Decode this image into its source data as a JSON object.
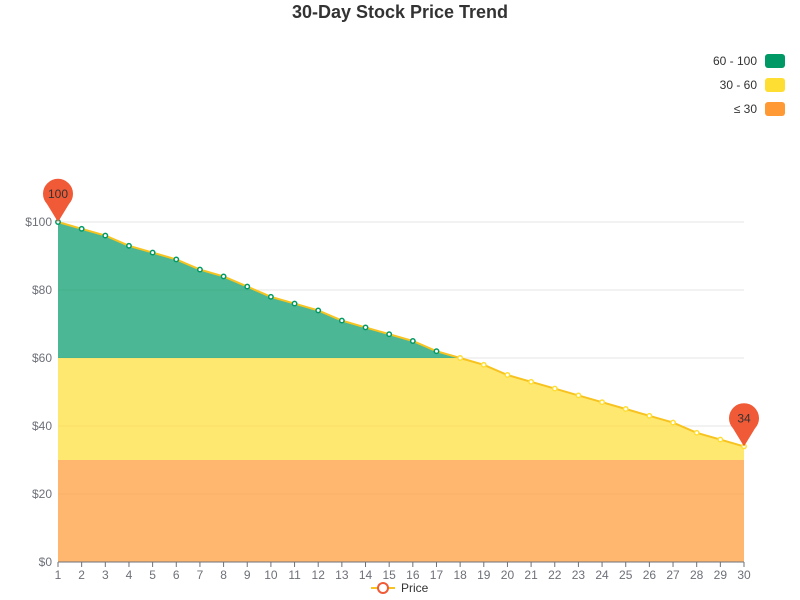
{
  "chart_data": {
    "type": "area",
    "title": "30-Day Stock Price Trend",
    "x": [
      1,
      2,
      3,
      4,
      5,
      6,
      7,
      8,
      9,
      10,
      11,
      12,
      13,
      14,
      15,
      16,
      17,
      18,
      19,
      20,
      21,
      22,
      23,
      24,
      25,
      26,
      27,
      28,
      29,
      30
    ],
    "series": [
      {
        "name": "Price",
        "values": [
          100,
          98,
          96,
          93,
          91,
          89,
          86,
          84,
          81,
          78,
          76,
          74,
          71,
          69,
          67,
          65,
          62,
          60,
          58,
          55,
          53,
          51,
          49,
          47,
          45,
          43,
          41,
          38,
          36,
          34
        ]
      }
    ],
    "ylim": [
      0,
      100
    ],
    "yticks": [
      0,
      20,
      40,
      60,
      80,
      100
    ],
    "ytick_prefix": "$",
    "grid": true,
    "visual_map": [
      {
        "label": "60 - 100",
        "min": 60,
        "max": 100,
        "color": "#009966"
      },
      {
        "label": "30 - 60",
        "min": 30,
        "max": 60,
        "color": "#ffde33"
      },
      {
        "label": "≤ 30",
        "min": 0,
        "max": 30,
        "color": "#ff9933"
      }
    ],
    "mark_points": [
      {
        "label": "100",
        "x": 1,
        "y": 100
      },
      {
        "label": "34",
        "x": 30,
        "y": 34
      }
    ],
    "legend": {
      "position": "bottom-center"
    }
  },
  "colors": {
    "line": "#f7c320",
    "mark_point": "#f05a36",
    "grid": "#e6e6e6",
    "axis": "#6e7079"
  }
}
